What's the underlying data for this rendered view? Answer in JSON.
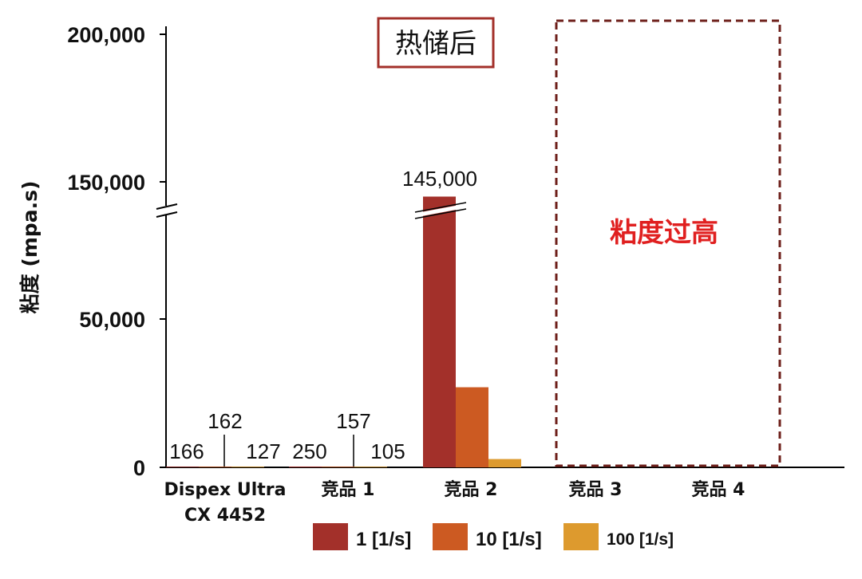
{
  "chart_data": {
    "type": "bar",
    "title": "",
    "ylabel": "粘度 (mpa.s)",
    "xlabel": "",
    "y_axis": {
      "broken": true,
      "ticks": [
        "200,000",
        "150,000",
        "50,000",
        "0"
      ],
      "lower_segment": [
        0,
        75000
      ],
      "upper_segment": [
        145000,
        200000
      ]
    },
    "categories": [
      {
        "line1": "Dispex Ultra",
        "line2": "CX 4452"
      },
      {
        "line1": "竞品 1",
        "line2": ""
      },
      {
        "line1": "竞品 2",
        "line2": ""
      },
      {
        "line1": "竞品 3",
        "line2": ""
      },
      {
        "line1": "竞品 4",
        "line2": ""
      }
    ],
    "series": [
      {
        "name": "1 [1/s]",
        "color": "#a3302a",
        "values": [
          166,
          250,
          145000,
          null,
          null
        ],
        "labels": [
          "166",
          "250",
          "145,000",
          "",
          ""
        ]
      },
      {
        "name": "10 [1/s]",
        "color": "#cc5a22",
        "values": [
          162,
          157,
          27000,
          null,
          null
        ],
        "labels": [
          "162",
          "157",
          "",
          "",
          ""
        ]
      },
      {
        "name": "100 [1/s]",
        "color": "#dd9a2e",
        "values": [
          127,
          105,
          2800,
          null,
          null
        ],
        "labels": [
          "127",
          "105",
          "",
          "",
          ""
        ]
      }
    ],
    "annotations": {
      "condition_label": "热储后",
      "excluded_label": "粘度过高",
      "excluded_categories": [
        "竞品 3",
        "竞品 4"
      ]
    },
    "legend_position": "bottom",
    "grid": false
  }
}
